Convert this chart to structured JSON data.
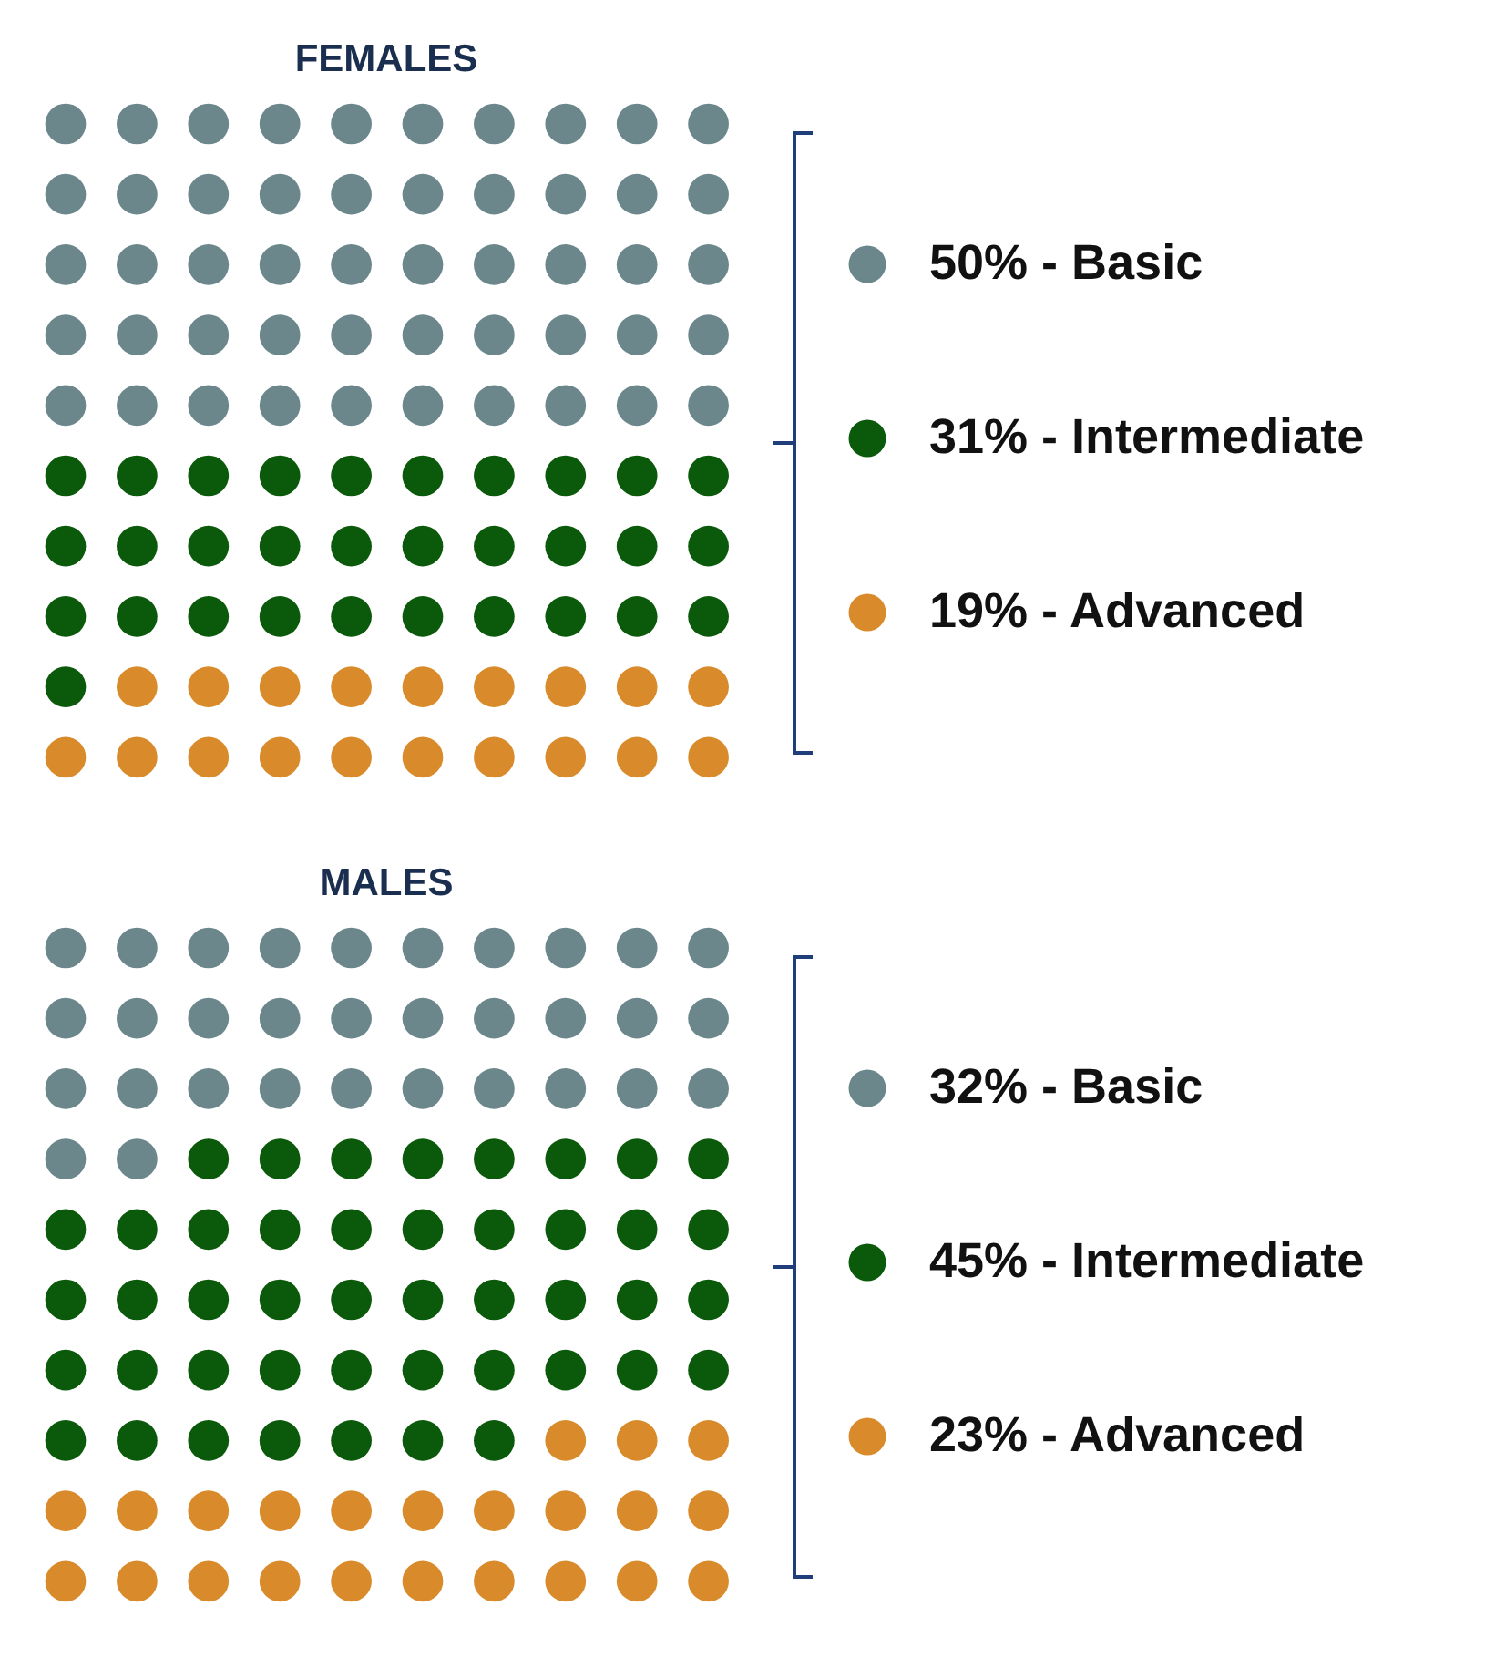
{
  "chart_data": [
    {
      "type": "other",
      "title": "FEMALES",
      "values": [
        50,
        31,
        19
      ],
      "colors": [
        "#6b878c",
        "#0b5a0b",
        "#d98b2b"
      ],
      "value_labels": [
        "50% - Basic",
        "31% - Intermediate",
        "19% - Advanced"
      ]
    },
    {
      "type": "other",
      "title": "MALES",
      "values": [
        32,
        45,
        23
      ],
      "colors": [
        "#6b878c",
        "#0b5a0b",
        "#d98b2b"
      ],
      "value_labels": [
        "32% - Basic",
        "45% - Intermediate",
        "23% - Advanced"
      ]
    }
  ]
}
